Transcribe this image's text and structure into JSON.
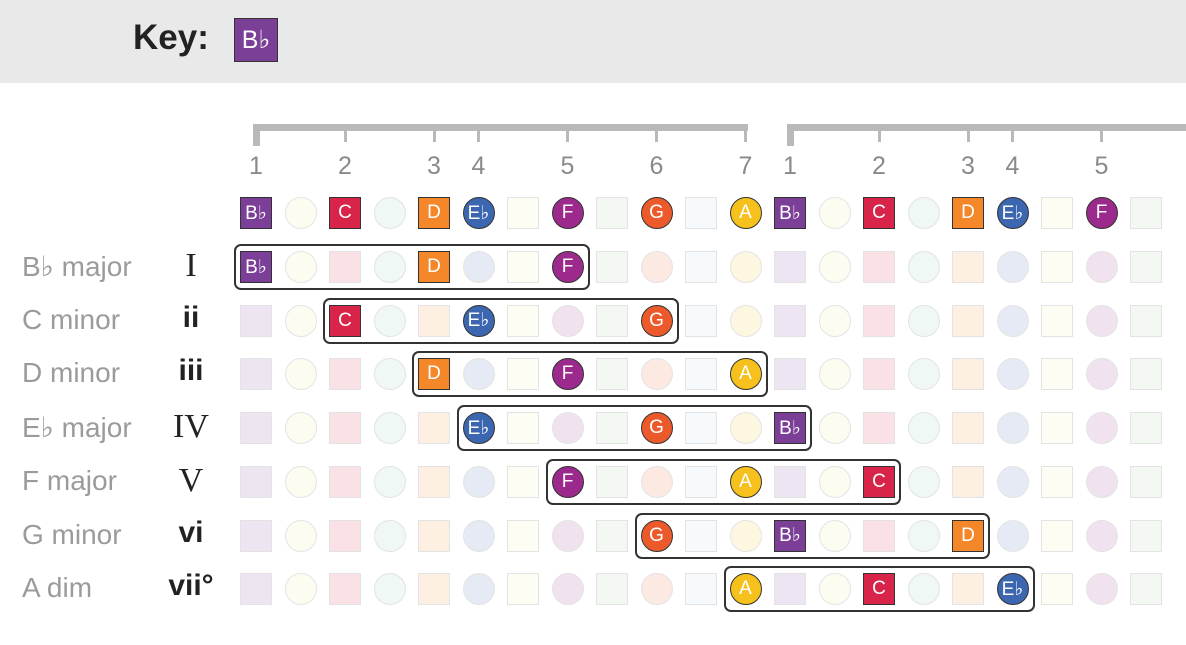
{
  "header": {
    "key_label": "Key:",
    "key_note": "B♭"
  },
  "scale": {
    "degrees": [
      "1",
      "2",
      "3",
      "4",
      "5",
      "6",
      "7"
    ],
    "notes": [
      {
        "name": "B♭",
        "shape": "square",
        "color": "#7b3f98"
      },
      {
        "name": "",
        "shape": "circle",
        "color": "#f5ec9a"
      },
      {
        "name": "C",
        "shape": "square",
        "color": "#d9244a"
      },
      {
        "name": "",
        "shape": "circle",
        "color": "#8ecfba"
      },
      {
        "name": "D",
        "shape": "square",
        "color": "#f3872a"
      },
      {
        "name": "E♭",
        "shape": "circle",
        "color": "#3c66b0"
      },
      {
        "name": "",
        "shape": "square",
        "color": "#fbf2a6"
      },
      {
        "name": "F",
        "shape": "circle",
        "color": "#9b2a8c"
      },
      {
        "name": "",
        "shape": "square",
        "color": "#a9d8a3"
      },
      {
        "name": "G",
        "shape": "circle",
        "color": "#ec5a2c"
      },
      {
        "name": "",
        "shape": "square",
        "color": "#bfe0f4"
      },
      {
        "name": "A",
        "shape": "circle",
        "color": "#f6c11d"
      }
    ]
  },
  "chords": [
    {
      "name": "B♭ major",
      "roman": "I",
      "degree": 1
    },
    {
      "name": "C minor",
      "roman": "ii",
      "degree": 2
    },
    {
      "name": "D minor",
      "roman": "iii",
      "degree": 3
    },
    {
      "name": "E♭ major",
      "roman": "IV",
      "degree": 4
    },
    {
      "name": "F major",
      "roman": "V",
      "degree": 5
    },
    {
      "name": "G minor",
      "roman": "vi",
      "degree": 6
    },
    {
      "name": "A dim",
      "roman": "vii°",
      "degree": 7
    }
  ]
}
